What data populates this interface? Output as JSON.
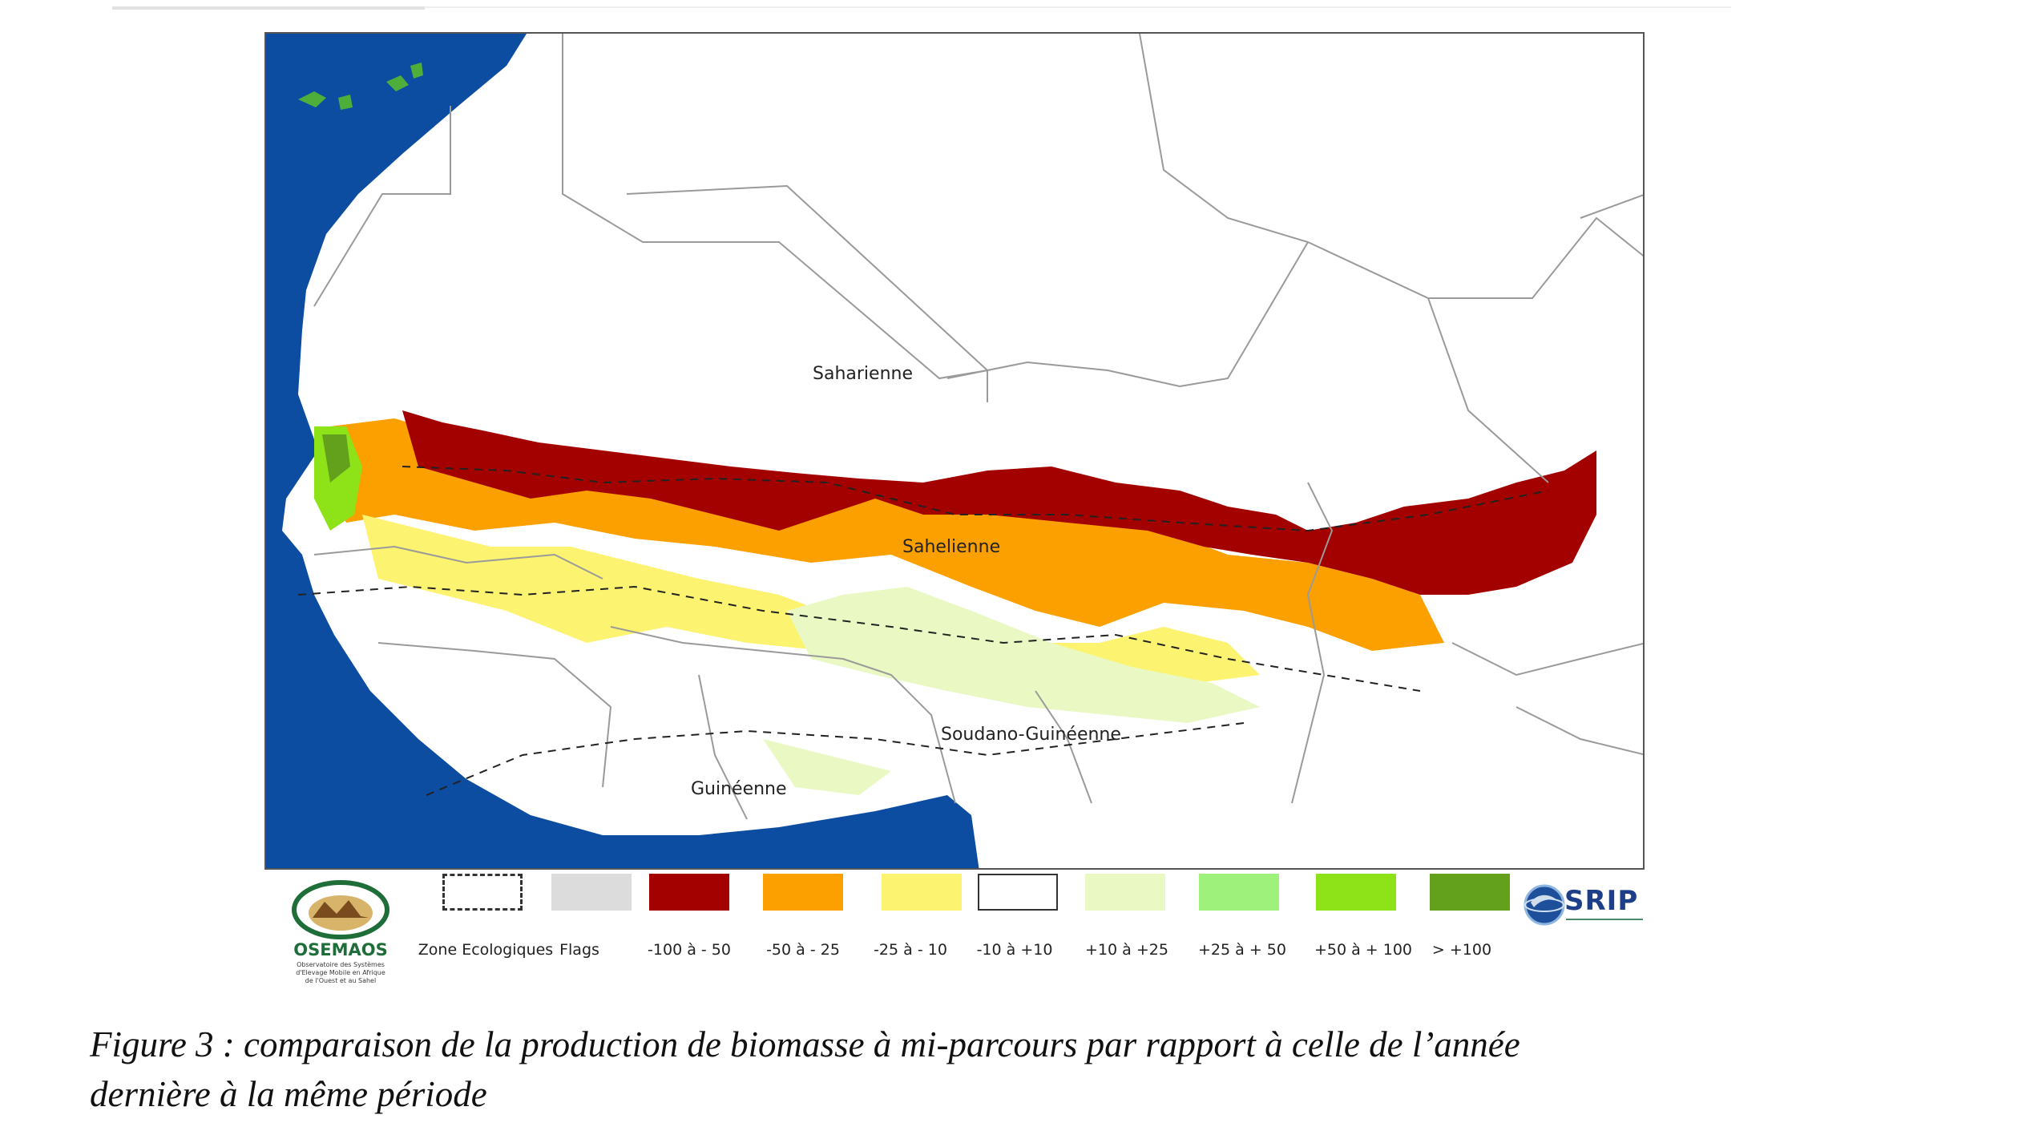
{
  "map": {
    "zone_labels": {
      "saharienne": "Saharienne",
      "sahelienne": "Sahelienne",
      "soudano_guineenne": "Soudano-Guinéenne",
      "guineenne": "Guinéenne"
    }
  },
  "legend": {
    "items": [
      {
        "label": "Zone Ecologiques",
        "color": "#ffffff",
        "style": "dashed"
      },
      {
        "label": "Flags",
        "color": "#dcdcdc",
        "style": "fill"
      },
      {
        "label": "-100 à - 50",
        "color": "#a30000",
        "style": "fill"
      },
      {
        "label": "-50 à - 25",
        "color": "#fca000",
        "style": "fill"
      },
      {
        "label": "-25 à - 10",
        "color": "#fcf370",
        "style": "fill"
      },
      {
        "label": "-10 à +10",
        "color": "#ffffff",
        "style": "outline"
      },
      {
        "label": "+10 à +25",
        "color": "#eaf9c4",
        "style": "fill"
      },
      {
        "label": "+25 à + 50",
        "color": "#9ef27c",
        "style": "fill"
      },
      {
        "label": "+50 à + 100",
        "color": "#8ee318",
        "style": "fill"
      },
      {
        "label": "> +100",
        "color": "#63a01c",
        "style": "fill"
      }
    ]
  },
  "logos": {
    "osemaos": {
      "name": "OSEMAOS",
      "subtitle_1": "Observatoire des Systèmes",
      "subtitle_2": "d'Elevage Mobile en Afrique",
      "subtitle_3": "de l'Ouest et au Sahel"
    },
    "srip": {
      "name": "SRIP"
    }
  },
  "caption": {
    "line1": "Figure 3 : comparaison de la production de biomasse à mi-parcours par rapport à celle de l’année",
    "line2": "dernière à la même période"
  },
  "colors": {
    "ocean": "#0c4da2",
    "land": "#ffffff",
    "border": "#9a9a9a"
  }
}
